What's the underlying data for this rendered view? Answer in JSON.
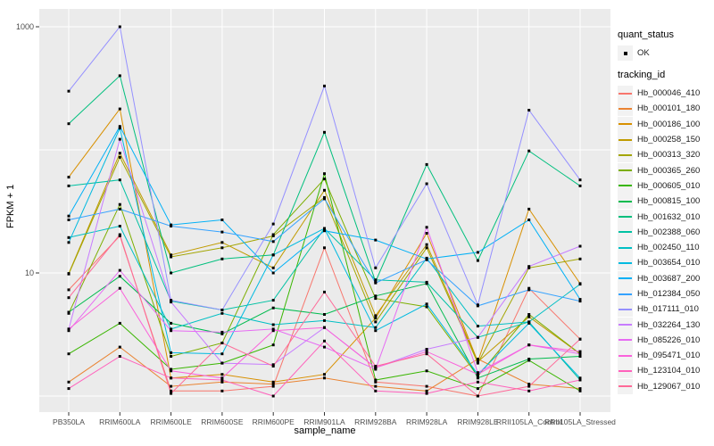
{
  "chart_data": {
    "type": "line",
    "title": "",
    "xlabel": "sample_name",
    "ylabel": "FPKM + 1",
    "y_scale": "log10",
    "ylim": [
      0.75,
      1400
    ],
    "y_tick_values": [
      1000,
      10
    ],
    "y_tick_labels": [
      "1000",
      "10"
    ],
    "y_gridline_values": [
      1,
      10,
      100,
      1000
    ],
    "grid": true,
    "legend_position": "right",
    "panel_bg": "#EBEBEB",
    "gridline_color": "#FFFFFF",
    "point_color": "#000000",
    "tick_color": "#333333",
    "axis_text_color": "#4D4D4D",
    "categories": [
      "PB350LA",
      "RRIM600LA",
      "RRIM600LE",
      "RRIM600SE",
      "RRIM600PE",
      "RRIM901LA",
      "RRIM928BA",
      "RRIM928LA",
      "RRIM928LE",
      "RRII105LA_Control",
      "RRII105LA_Stressed"
    ],
    "legend": {
      "quant_status_title": "quant_status",
      "quant_status_items": [
        "OK"
      ],
      "tracking_id_title": "tracking_id"
    },
    "series": [
      {
        "name": "Hb_000046_410",
        "color": "#F8766D",
        "values": [
          7.3,
          20,
          1.1,
          1.1,
          1.2,
          16,
          1.3,
          1.2,
          1.0,
          7.5,
          2.9
        ]
      },
      {
        "name": "Hb_000101_180",
        "color": "#EA8331",
        "values": [
          1.3,
          2.5,
          1.2,
          1.3,
          1.25,
          1.4,
          1.2,
          1.1,
          2.0,
          1.25,
          1.15
        ]
      },
      {
        "name": "Hb_000186_100",
        "color": "#D89000",
        "values": [
          60,
          215,
          1.4,
          1.5,
          1.3,
          1.5,
          4.3,
          21,
          1.9,
          33,
          8.2
        ]
      },
      {
        "name": "Hb_000258_150",
        "color": "#C09B00",
        "values": [
          9.9,
          94,
          14,
          17.7,
          11,
          47,
          4.5,
          17,
          1.9,
          4.4,
          2.2
        ]
      },
      {
        "name": "Hb_000313_320",
        "color": "#A3A500",
        "values": [
          9.8,
          87,
          13.5,
          16,
          20,
          41,
          4.0,
          16,
          1.85,
          11,
          13
        ]
      },
      {
        "name": "Hb_000365_260",
        "color": "#7CAE00",
        "values": [
          4.7,
          36,
          2.1,
          2.7,
          20.5,
          58,
          6.2,
          5.3,
          1.45,
          4.6,
          2.2
        ]
      },
      {
        "name": "Hb_000605_010",
        "color": "#39B600",
        "values": [
          2.2,
          3.9,
          1.65,
          1.85,
          2.6,
          64,
          1.35,
          1.6,
          1.15,
          1.95,
          1.1
        ]
      },
      {
        "name": "Hb_000815_100",
        "color": "#00BB4E",
        "values": [
          4.8,
          9.4,
          3.9,
          3.2,
          5.2,
          4.6,
          6.5,
          8.2,
          1.4,
          2.0,
          2.1
        ]
      },
      {
        "name": "Hb_001632_010",
        "color": "#00BF7D",
        "values": [
          163,
          400,
          10,
          13,
          14,
          139,
          8.5,
          76,
          12.6,
          98,
          51
        ]
      },
      {
        "name": "Hb_002388_060",
        "color": "#00C1A3",
        "values": [
          51,
          57,
          5.9,
          5.0,
          6.0,
          23,
          8.8,
          8.4,
          3.0,
          4.0,
          1.35
        ]
      },
      {
        "name": "Hb_002450_110",
        "color": "#00BFC4",
        "values": [
          19.4,
          24,
          3.5,
          4.7,
          3.8,
          4.1,
          3.6,
          13.2,
          3.7,
          4.0,
          8.1
        ]
      },
      {
        "name": "Hb_003654_010",
        "color": "#00BAE0",
        "values": [
          17.7,
          150,
          2.25,
          2.2,
          14,
          23,
          3.4,
          5.6,
          1.5,
          3.9,
          1.4
        ]
      },
      {
        "name": "Hb_003687_200",
        "color": "#00B0F6",
        "values": [
          29,
          155,
          24.6,
          27,
          10,
          22,
          18.5,
          13,
          14.7,
          27,
          6.1
        ]
      },
      {
        "name": "Hb_012384_050",
        "color": "#35A2FF",
        "values": [
          27,
          33,
          24,
          21.5,
          18,
          40,
          8.3,
          12.8,
          5.4,
          7.3,
          5.9
        ]
      },
      {
        "name": "Hb_017111_010",
        "color": "#9590FF",
        "values": [
          300,
          1000,
          6.0,
          5.0,
          25,
          330,
          11,
          53,
          5.5,
          210,
          57
        ]
      },
      {
        "name": "Hb_032264_130",
        "color": "#C77CFF",
        "values": [
          3.5,
          122,
          5.8,
          1.85,
          1.8,
          3.6,
          1.7,
          2.4,
          3.0,
          11.3,
          16.5
        ]
      },
      {
        "name": "Hb_085226_010",
        "color": "#E76BF3",
        "values": [
          3.4,
          10.5,
          3.4,
          3.3,
          3.5,
          2.5,
          1.65,
          23.5,
          1.55,
          2.6,
          2.2
        ]
      },
      {
        "name": "Hb_095471_010",
        "color": "#FA62DB",
        "values": [
          3.5,
          7.5,
          1.6,
          1.4,
          3.4,
          3.6,
          1.7,
          2.3,
          1.5,
          2.6,
          2.3
        ]
      },
      {
        "name": "Hb_123104_010",
        "color": "#FF62BC",
        "values": [
          1.15,
          2.1,
          1.4,
          1.35,
          1.0,
          2.8,
          1.1,
          1.05,
          1.3,
          1.1,
          1.35
        ]
      },
      {
        "name": "Hb_129067_010",
        "color": "#FF6A98",
        "values": [
          6.3,
          20.5,
          1.05,
          2.7,
          1.75,
          7.0,
          1.75,
          2.2,
          1.0,
          1.2,
          2.9
        ]
      }
    ]
  }
}
